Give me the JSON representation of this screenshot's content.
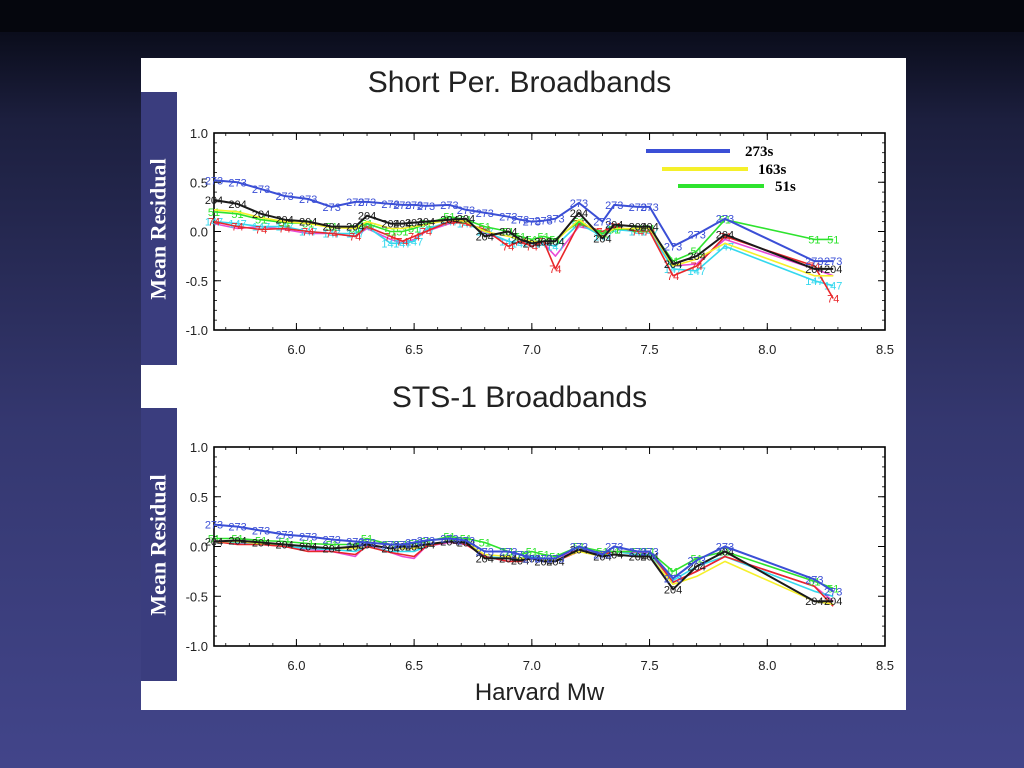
{
  "colors": {
    "s273": "#3b4fd6",
    "s204": "#1a1a1a",
    "s163": "#f5f02a",
    "s51": "#2ee32e",
    "s74": "#e8262a",
    "s147": "#34d8ee",
    "s6": "#e84bd6"
  },
  "side_labels": {
    "top": "Mean Residual",
    "bottom": "Mean Residual"
  },
  "chart_data": [
    {
      "type": "line",
      "title": "Short Per. Broadbands",
      "xlabel": "",
      "ylabel": "Mean Residual",
      "xlim": [
        5.65,
        8.5
      ],
      "ylim": [
        -1.0,
        1.0
      ],
      "xticks": [
        "6.0",
        "6.5",
        "7.0",
        "7.5",
        "8.0",
        "8.5"
      ],
      "yticks": [
        "1.0",
        "0.5",
        "0.0",
        "-0.5",
        "-1.0"
      ],
      "legend": {
        "placement": "top-right",
        "entries": [
          {
            "label": "273s",
            "color": "s273"
          },
          {
            "label": "163s",
            "color": "s163"
          },
          {
            "label": "51s",
            "color": "s51"
          }
        ]
      },
      "x": [
        5.65,
        5.75,
        5.85,
        5.95,
        6.05,
        6.15,
        6.25,
        6.3,
        6.4,
        6.45,
        6.5,
        6.55,
        6.65,
        6.72,
        6.8,
        6.9,
        6.95,
        7.0,
        7.05,
        7.1,
        7.2,
        7.3,
        7.35,
        7.45,
        7.5,
        7.6,
        7.7,
        7.82,
        8.2,
        8.28
      ],
      "series": [
        {
          "name": "273",
          "color": "s273",
          "label_text": "273",
          "values": [
            0.52,
            0.5,
            0.43,
            0.36,
            0.33,
            0.25,
            0.3,
            0.3,
            0.28,
            0.27,
            0.27,
            0.26,
            0.27,
            0.22,
            0.19,
            0.15,
            0.12,
            0.1,
            0.11,
            0.13,
            0.29,
            0.1,
            0.27,
            0.25,
            0.25,
            -0.15,
            -0.03,
            0.13,
            -0.3,
            -0.3
          ]
        },
        {
          "name": "204",
          "color": "s204",
          "label_text": "204",
          "values": [
            0.32,
            0.28,
            0.18,
            0.12,
            0.1,
            0.05,
            0.05,
            0.16,
            0.08,
            0.08,
            0.09,
            0.1,
            0.12,
            0.13,
            -0.05,
            0.0,
            -0.08,
            -0.12,
            -0.1,
            -0.1,
            0.19,
            -0.07,
            0.07,
            0.05,
            0.05,
            -0.33,
            -0.25,
            -0.03,
            -0.38,
            -0.38
          ]
        },
        {
          "name": "163",
          "color": "s163",
          "label_text": "",
          "values": [
            0.22,
            0.2,
            0.14,
            0.1,
            0.08,
            0.04,
            0.03,
            0.1,
            0.03,
            0.03,
            0.05,
            0.07,
            0.12,
            0.1,
            0.0,
            -0.05,
            -0.08,
            -0.1,
            -0.1,
            -0.1,
            0.12,
            -0.05,
            0.03,
            0.03,
            0.03,
            -0.35,
            -0.28,
            -0.12,
            -0.45,
            -0.45
          ]
        },
        {
          "name": "51",
          "color": "s51",
          "label_text": "51",
          "values": [
            0.2,
            0.18,
            0.12,
            0.09,
            0.08,
            0.05,
            0.03,
            0.08,
            0.0,
            0.0,
            0.03,
            0.08,
            0.15,
            0.12,
            0.05,
            0.0,
            -0.05,
            -0.08,
            -0.05,
            -0.08,
            0.1,
            -0.02,
            0.02,
            0.03,
            0.03,
            -0.3,
            -0.2,
            0.12,
            -0.08,
            -0.08
          ]
        },
        {
          "name": "74",
          "color": "s74",
          "label_text": "74",
          "values": [
            0.1,
            0.05,
            0.02,
            0.03,
            0.0,
            -0.02,
            -0.05,
            0.05,
            -0.05,
            -0.1,
            -0.05,
            0.0,
            0.1,
            0.08,
            0.02,
            -0.15,
            -0.1,
            -0.15,
            -0.1,
            -0.38,
            0.08,
            0.0,
            0.05,
            0.0,
            0.0,
            -0.45,
            -0.35,
            -0.05,
            -0.35,
            -0.68
          ]
        },
        {
          "name": "147",
          "color": "s147",
          "label_text": "147",
          "values": [
            0.1,
            0.08,
            0.05,
            0.05,
            0.0,
            -0.02,
            -0.02,
            0.05,
            -0.12,
            -0.12,
            -0.1,
            0.02,
            0.1,
            0.08,
            0.0,
            -0.1,
            -0.12,
            -0.12,
            -0.12,
            -0.15,
            0.08,
            -0.05,
            0.02,
            0.0,
            0.0,
            -0.38,
            -0.4,
            -0.15,
            -0.5,
            -0.55
          ]
        },
        {
          "name": "6",
          "color": "s6",
          "label_text": "",
          "values": [
            0.08,
            0.03,
            0.05,
            0.02,
            -0.02,
            -0.02,
            -0.05,
            0.03,
            -0.08,
            -0.12,
            -0.08,
            0.0,
            0.08,
            0.1,
            -0.02,
            -0.1,
            -0.12,
            -0.12,
            -0.12,
            -0.25,
            0.05,
            0.0,
            0.03,
            0.0,
            0.0,
            -0.35,
            -0.33,
            -0.08,
            -0.38,
            -0.45
          ]
        }
      ]
    },
    {
      "type": "line",
      "title": "STS-1 Broadbands",
      "xlabel": "Harvard Mw",
      "ylabel": "Mean Residual",
      "xlim": [
        5.65,
        8.5
      ],
      "ylim": [
        -1.0,
        1.0
      ],
      "xticks": [
        "6.0",
        "6.5",
        "7.0",
        "7.5",
        "8.0",
        "8.5"
      ],
      "yticks": [
        "1.0",
        "0.5",
        "0.0",
        "-0.5",
        "-1.0"
      ],
      "x": [
        5.65,
        5.75,
        5.85,
        5.95,
        6.05,
        6.15,
        6.25,
        6.3,
        6.4,
        6.45,
        6.5,
        6.55,
        6.65,
        6.72,
        6.8,
        6.9,
        6.95,
        7.0,
        7.05,
        7.1,
        7.2,
        7.3,
        7.35,
        7.45,
        7.5,
        7.6,
        7.7,
        7.82,
        8.2,
        8.28
      ],
      "series": [
        {
          "name": "273",
          "color": "s273",
          "label_text": "273",
          "values": [
            0.22,
            0.2,
            0.16,
            0.12,
            0.1,
            0.07,
            0.05,
            0.04,
            0.02,
            0.02,
            0.04,
            0.06,
            0.08,
            0.06,
            -0.05,
            -0.05,
            -0.08,
            -0.12,
            -0.12,
            -0.12,
            0.0,
            -0.08,
            0.0,
            -0.05,
            -0.05,
            -0.32,
            -0.14,
            0.0,
            -0.33,
            -0.45
          ]
        },
        {
          "name": "204",
          "color": "s204",
          "label_text": "204",
          "values": [
            0.05,
            0.06,
            0.04,
            0.02,
            0.0,
            -0.02,
            0.0,
            0.02,
            -0.02,
            0.0,
            0.0,
            0.02,
            0.05,
            0.04,
            -0.12,
            -0.12,
            -0.14,
            -0.12,
            -0.15,
            -0.15,
            -0.03,
            -0.1,
            -0.08,
            -0.1,
            -0.1,
            -0.43,
            -0.2,
            -0.05,
            -0.55,
            -0.55
          ]
        },
        {
          "name": "163",
          "color": "s163",
          "label_text": "",
          "values": [
            0.05,
            0.05,
            0.03,
            0.02,
            0.0,
            -0.02,
            -0.02,
            0.02,
            -0.02,
            -0.02,
            -0.02,
            0.02,
            0.05,
            0.04,
            -0.08,
            -0.1,
            -0.12,
            -0.12,
            -0.14,
            -0.14,
            -0.05,
            -0.1,
            -0.08,
            -0.1,
            -0.1,
            -0.38,
            -0.3,
            -0.15,
            -0.55,
            -0.58
          ]
        },
        {
          "name": "51",
          "color": "s51",
          "label_text": "51",
          "values": [
            0.08,
            0.08,
            0.06,
            0.05,
            0.03,
            0.02,
            0.02,
            0.08,
            0.02,
            0.02,
            0.03,
            0.05,
            0.1,
            0.08,
            0.04,
            -0.05,
            -0.08,
            -0.05,
            -0.08,
            -0.1,
            0.0,
            -0.05,
            -0.05,
            -0.05,
            -0.05,
            -0.25,
            -0.12,
            -0.05,
            -0.35,
            -0.42
          ]
        },
        {
          "name": "74",
          "color": "s74",
          "label_text": "",
          "values": [
            0.05,
            0.02,
            0.02,
            0.0,
            -0.05,
            -0.05,
            -0.08,
            0.0,
            -0.06,
            -0.08,
            -0.1,
            0.0,
            0.05,
            0.02,
            -0.1,
            -0.15,
            -0.15,
            -0.12,
            -0.15,
            -0.15,
            -0.05,
            -0.08,
            -0.05,
            -0.05,
            -0.05,
            -0.36,
            -0.25,
            -0.1,
            -0.4,
            -0.6
          ]
        },
        {
          "name": "147",
          "color": "s147",
          "label_text": "",
          "values": [
            0.05,
            0.04,
            0.03,
            0.0,
            -0.02,
            -0.03,
            -0.05,
            0.0,
            -0.05,
            -0.05,
            -0.05,
            0.0,
            0.05,
            0.03,
            -0.1,
            -0.12,
            -0.12,
            -0.1,
            -0.12,
            -0.15,
            -0.04,
            -0.08,
            -0.05,
            -0.08,
            -0.08,
            -0.34,
            -0.2,
            -0.1,
            -0.45,
            -0.5
          ]
        },
        {
          "name": "6",
          "color": "s6",
          "label_text": "",
          "values": [
            0.06,
            0.03,
            0.02,
            0.0,
            -0.03,
            -0.05,
            -0.1,
            0.02,
            -0.06,
            -0.1,
            -0.12,
            0.0,
            0.04,
            0.02,
            -0.1,
            -0.15,
            -0.14,
            -0.1,
            -0.13,
            -0.12,
            -0.03,
            -0.06,
            -0.05,
            -0.06,
            -0.06,
            -0.36,
            -0.25,
            -0.1,
            -0.4,
            -0.55
          ]
        }
      ]
    }
  ]
}
